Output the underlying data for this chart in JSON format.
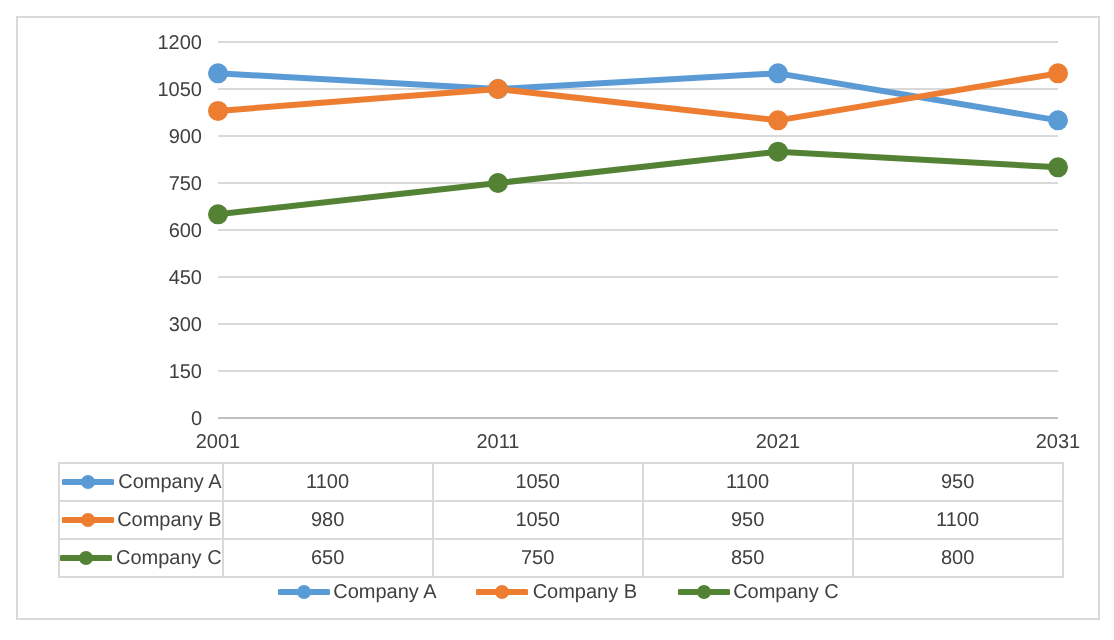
{
  "chart_data": {
    "type": "line",
    "categories": [
      "2001",
      "2011",
      "2021",
      "2031"
    ],
    "series": [
      {
        "name": "Company A",
        "color": "#5b9bd5",
        "values": [
          1100,
          1050,
          1100,
          950
        ]
      },
      {
        "name": "Company B",
        "color": "#ed7d31",
        "values": [
          980,
          1050,
          950,
          1100
        ]
      },
      {
        "name": "Company C",
        "color": "#548235",
        "values": [
          650,
          750,
          850,
          800
        ]
      }
    ],
    "ylim": [
      0,
      1200
    ],
    "yticks": [
      0,
      150,
      300,
      450,
      600,
      750,
      900,
      1050,
      1200
    ],
    "grid": "y",
    "legend": "bottom",
    "marker": "circle",
    "data_labels": true
  }
}
